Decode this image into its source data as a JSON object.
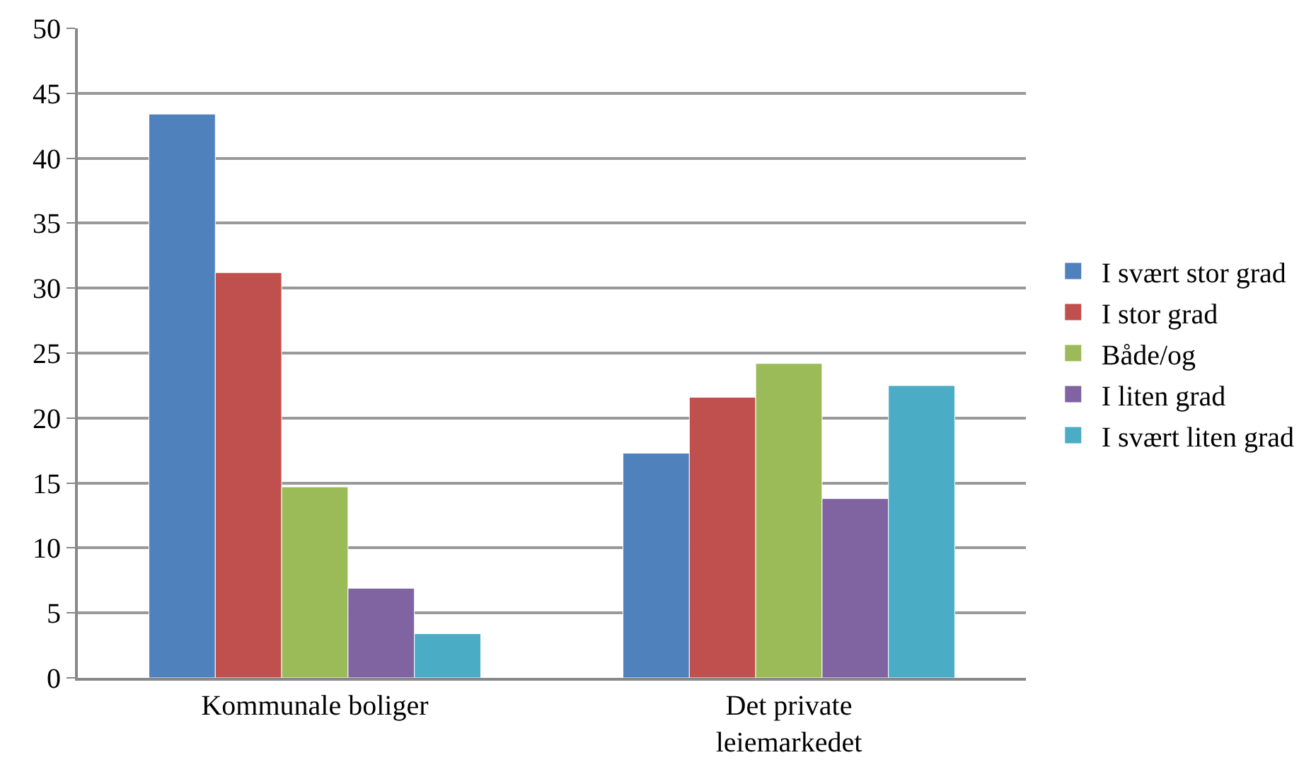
{
  "chart_data": {
    "type": "bar",
    "categories": [
      "Kommunale boliger",
      "Det private leiemarkedet"
    ],
    "series": [
      {
        "name": "I svært stor grad",
        "color": "#4f81bd",
        "values": [
          43.4,
          17.3
        ]
      },
      {
        "name": "I stor grad",
        "color": "#c0504d",
        "values": [
          31.2,
          21.6
        ]
      },
      {
        "name": "Både/og",
        "color": "#9bbb59",
        "values": [
          14.7,
          24.2
        ]
      },
      {
        "name": "I liten grad",
        "color": "#8064a2",
        "values": [
          6.9,
          13.8
        ]
      },
      {
        "name": "I svært liten grad",
        "color": "#4bacc6",
        "values": [
          3.4,
          22.5
        ]
      }
    ],
    "ylim": [
      0,
      50
    ],
    "yticks": [
      0,
      5,
      10,
      15,
      20,
      25,
      30,
      35,
      40,
      45,
      50
    ],
    "grid": "y",
    "legend": "right"
  }
}
